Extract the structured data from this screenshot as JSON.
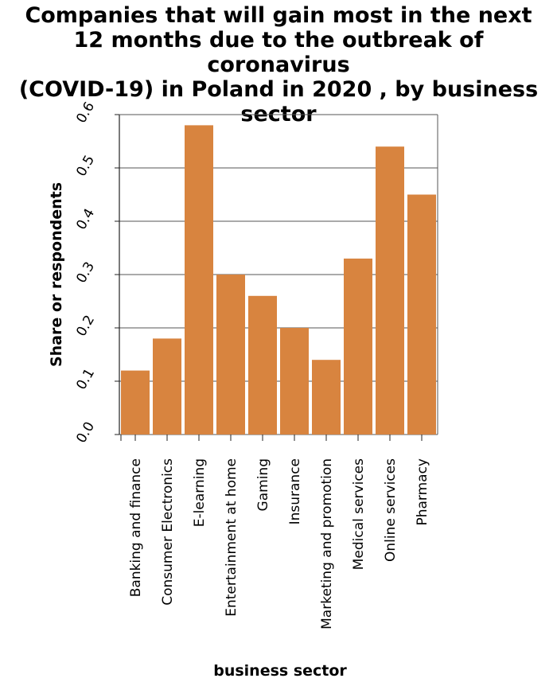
{
  "chart_data": {
    "type": "bar",
    "title_lines": [
      "Companies that will gain most in the next",
      "12 months due to the outbreak of coronavirus",
      "(COVID-19) in Poland in 2020 , by business",
      "sector"
    ],
    "xlabel": "business sector",
    "ylabel": "Share or respondents",
    "categories": [
      "Banking and finance",
      "Consumer Electronics",
      "E-learning",
      "Entertainment at home",
      "Gaming",
      "Insurance",
      "Marketing and promotion",
      "Medical services",
      "Online services",
      "Pharmacy"
    ],
    "values": [
      0.12,
      0.18,
      0.58,
      0.3,
      0.26,
      0.2,
      0.14,
      0.33,
      0.54,
      0.45
    ],
    "yticks": [
      "0.0",
      "0.1",
      "0.2",
      "0.3",
      "0.4",
      "0.5",
      "0.6"
    ],
    "ylim": [
      0,
      0.6
    ],
    "grid": true,
    "bar_color": "#d8843f"
  }
}
